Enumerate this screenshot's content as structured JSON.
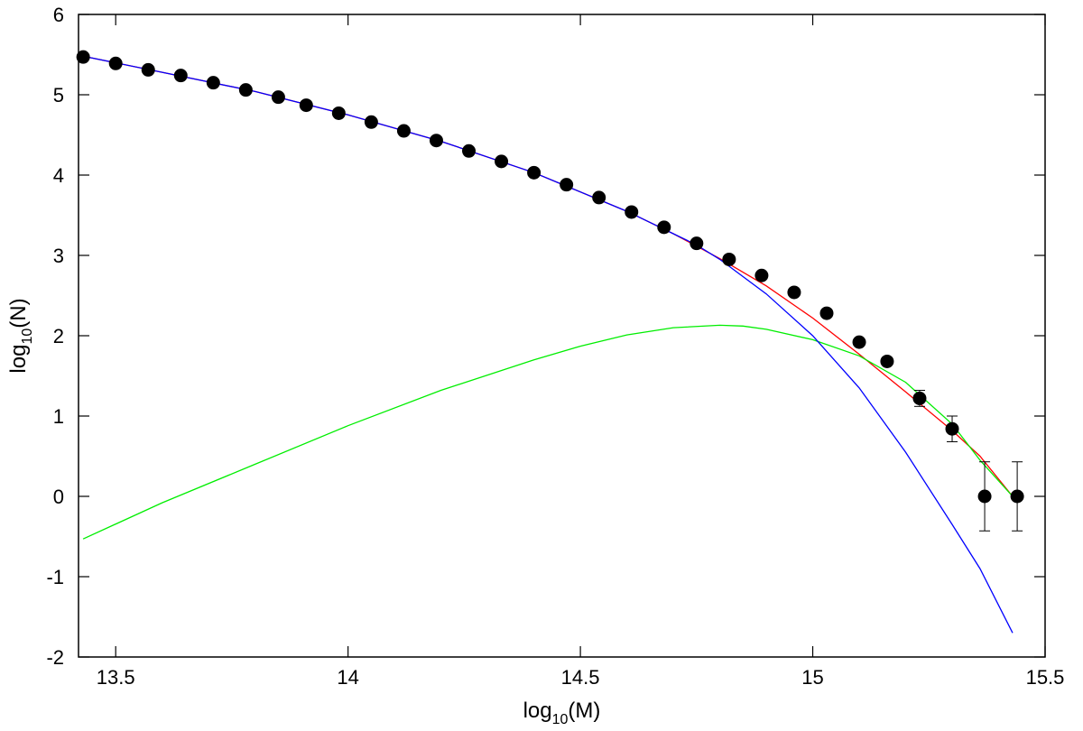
{
  "chart_data": {
    "type": "scatter",
    "title": "",
    "xlabel": {
      "prefix": "log",
      "sub": "10",
      "suffix": "(M)"
    },
    "ylabel": {
      "prefix": "log",
      "sub": "10",
      "suffix": "(N)"
    },
    "xlim": [
      13.42,
      15.5
    ],
    "ylim": [
      -2,
      6
    ],
    "xticks": [
      13.5,
      14,
      14.5,
      15,
      15.5
    ],
    "yticks": [
      -2,
      -1,
      0,
      1,
      2,
      3,
      4,
      5,
      6
    ],
    "grid": false,
    "legend": "none",
    "points": {
      "x": [
        13.43,
        13.5,
        13.57,
        13.64,
        13.71,
        13.78,
        13.85,
        13.91,
        13.98,
        14.05,
        14.12,
        14.19,
        14.26,
        14.33,
        14.4,
        14.47,
        14.54,
        14.61,
        14.68,
        14.75,
        14.82,
        14.89,
        14.96,
        15.03,
        15.1,
        15.16,
        15.23,
        15.3,
        15.37,
        15.44
      ],
      "y": [
        5.47,
        5.39,
        5.31,
        5.24,
        5.15,
        5.06,
        4.97,
        4.87,
        4.77,
        4.66,
        4.55,
        4.43,
        4.3,
        4.17,
        4.03,
        3.88,
        3.72,
        3.54,
        3.35,
        3.15,
        2.95,
        2.75,
        2.54,
        2.28,
        1.92,
        1.68,
        1.22,
        0.84,
        0.0,
        0.0
      ],
      "yerr": [
        0,
        0,
        0,
        0,
        0,
        0,
        0,
        0,
        0,
        0,
        0,
        0,
        0,
        0,
        0,
        0,
        0,
        0,
        0,
        0,
        0,
        0,
        0,
        0,
        0,
        0,
        0.1,
        0.16,
        0.43,
        0.43
      ],
      "color": "#000000"
    },
    "series": [
      {
        "color": "#ff0000",
        "x": [
          13.43,
          13.6,
          13.8,
          14.0,
          14.2,
          14.4,
          14.6,
          14.7,
          14.8,
          14.9,
          15.0,
          15.1,
          15.2,
          15.3,
          15.36,
          15.43
        ],
        "y": [
          5.48,
          5.28,
          5.04,
          4.75,
          4.42,
          4.03,
          3.55,
          3.27,
          2.96,
          2.62,
          2.22,
          1.77,
          1.3,
          0.82,
          0.5,
          0.0
        ]
      },
      {
        "color": "#00ee00",
        "x": [
          13.43,
          13.6,
          13.8,
          14.0,
          14.2,
          14.4,
          14.5,
          14.6,
          14.7,
          14.8,
          14.85,
          14.9,
          15.0,
          15.1,
          15.2,
          15.3,
          15.36,
          15.43
        ],
        "y": [
          -0.53,
          -0.08,
          0.4,
          0.88,
          1.32,
          1.7,
          1.87,
          2.01,
          2.1,
          2.13,
          2.12,
          2.08,
          1.95,
          1.75,
          1.42,
          0.9,
          0.45,
          0.0
        ]
      },
      {
        "color": "#0000ff",
        "x": [
          13.43,
          13.6,
          13.8,
          14.0,
          14.2,
          14.4,
          14.6,
          14.7,
          14.75,
          14.8,
          14.9,
          15.0,
          15.1,
          15.2,
          15.3,
          15.36,
          15.43
        ],
        "y": [
          5.48,
          5.28,
          5.04,
          4.75,
          4.42,
          4.03,
          3.55,
          3.27,
          3.13,
          2.95,
          2.52,
          2.0,
          1.35,
          0.55,
          -0.35,
          -0.9,
          -1.7
        ]
      }
    ]
  }
}
